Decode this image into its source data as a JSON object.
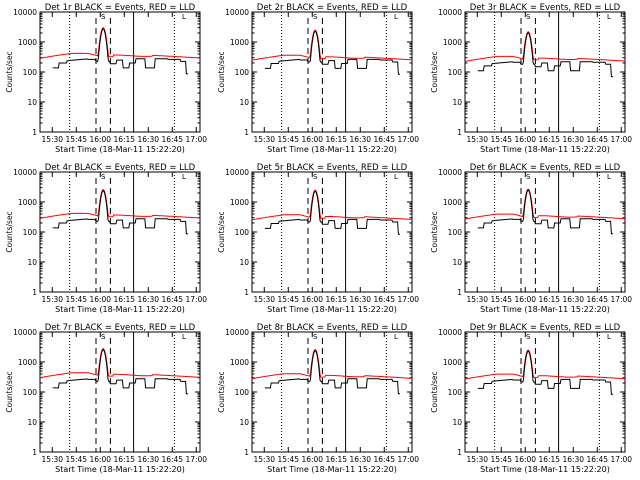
{
  "xlabel_template": "Start Time (18-Mar-11 15:22:20)",
  "ylabel": "Counts/sec",
  "y_ticks": [
    "1",
    "10",
    "100",
    "1000",
    "10000"
  ],
  "x_ticks": [
    "15:30",
    "15:45",
    "16:00",
    "16:15",
    "16:30",
    "16:45",
    "17:00"
  ],
  "colors": {
    "events": "#000000",
    "lld": "#ff0000",
    "axes": "#000000"
  },
  "marker_labels": {
    "top_small_1": "S",
    "top_small_2": "L"
  },
  "chart_data": [
    {
      "type": "line",
      "title": "Det 1r BLACK = Events, RED = LLD",
      "ylog": true,
      "ylim": [
        1,
        10000
      ],
      "xlim_minutes": [
        0,
        100
      ],
      "series": [
        {
          "name": "Events",
          "color": "#000000"
        },
        {
          "name": "LLD",
          "color": "#ff0000"
        }
      ],
      "peak": 3000,
      "base_events": 250,
      "base_lld": 380
    },
    {
      "type": "line",
      "title": "Det 2r BLACK = Events, RED = LLD",
      "ylog": true,
      "ylim": [
        1,
        10000
      ],
      "xlim_minutes": [
        0,
        100
      ],
      "series": [
        {
          "name": "Events",
          "color": "#000000"
        },
        {
          "name": "LLD",
          "color": "#ff0000"
        }
      ],
      "peak": 2500,
      "base_events": 240,
      "base_lld": 330
    },
    {
      "type": "line",
      "title": "Det 3r BLACK = Events, RED = LLD",
      "ylog": true,
      "ylim": [
        1,
        10000
      ],
      "xlim_minutes": [
        0,
        100
      ],
      "series": [
        {
          "name": "Events",
          "color": "#000000"
        },
        {
          "name": "LLD",
          "color": "#ff0000"
        }
      ],
      "peak": 2200,
      "base_events": 200,
      "base_lld": 300
    },
    {
      "type": "line",
      "title": "Det 4r BLACK = Events, RED = LLD",
      "ylog": true,
      "ylim": [
        1,
        10000
      ],
      "xlim_minutes": [
        0,
        100
      ],
      "series": [
        {
          "name": "Events",
          "color": "#000000"
        },
        {
          "name": "LLD",
          "color": "#ff0000"
        }
      ],
      "peak": 2600,
      "base_events": 250,
      "base_lld": 380
    },
    {
      "type": "line",
      "title": "Det 5r BLACK = Events, RED = LLD",
      "ylog": true,
      "ylim": [
        1,
        10000
      ],
      "xlim_minutes": [
        0,
        100
      ],
      "series": [
        {
          "name": "Events",
          "color": "#000000"
        },
        {
          "name": "LLD",
          "color": "#ff0000"
        }
      ],
      "peak": 2500,
      "base_events": 240,
      "base_lld": 340
    },
    {
      "type": "line",
      "title": "Det 6r BLACK = Events, RED = LLD",
      "ylog": true,
      "ylim": [
        1,
        10000
      ],
      "xlim_minutes": [
        0,
        100
      ],
      "series": [
        {
          "name": "Events",
          "color": "#000000"
        },
        {
          "name": "LLD",
          "color": "#ff0000"
        }
      ],
      "peak": 2700,
      "base_events": 250,
      "base_lld": 360
    },
    {
      "type": "line",
      "title": "Det 7r BLACK = Events, RED = LLD",
      "ylog": true,
      "ylim": [
        1,
        10000
      ],
      "xlim_minutes": [
        0,
        100
      ],
      "series": [
        {
          "name": "Events",
          "color": "#000000"
        },
        {
          "name": "LLD",
          "color": "#ff0000"
        }
      ],
      "peak": 2800,
      "base_events": 250,
      "base_lld": 400
    },
    {
      "type": "line",
      "title": "Det 8r BLACK = Events, RED = LLD",
      "ylog": true,
      "ylim": [
        1,
        10000
      ],
      "xlim_minutes": [
        0,
        100
      ],
      "series": [
        {
          "name": "Events",
          "color": "#000000"
        },
        {
          "name": "LLD",
          "color": "#ff0000"
        }
      ],
      "peak": 2600,
      "base_events": 250,
      "base_lld": 370
    },
    {
      "type": "line",
      "title": "Det 9r BLACK = Events, RED = LLD",
      "ylog": true,
      "ylim": [
        1,
        10000
      ],
      "xlim_minutes": [
        0,
        100
      ],
      "series": [
        {
          "name": "Events",
          "color": "#000000"
        },
        {
          "name": "LLD",
          "color": "#ff0000"
        }
      ],
      "peak": 2500,
      "base_events": 240,
      "base_lld": 360
    }
  ]
}
